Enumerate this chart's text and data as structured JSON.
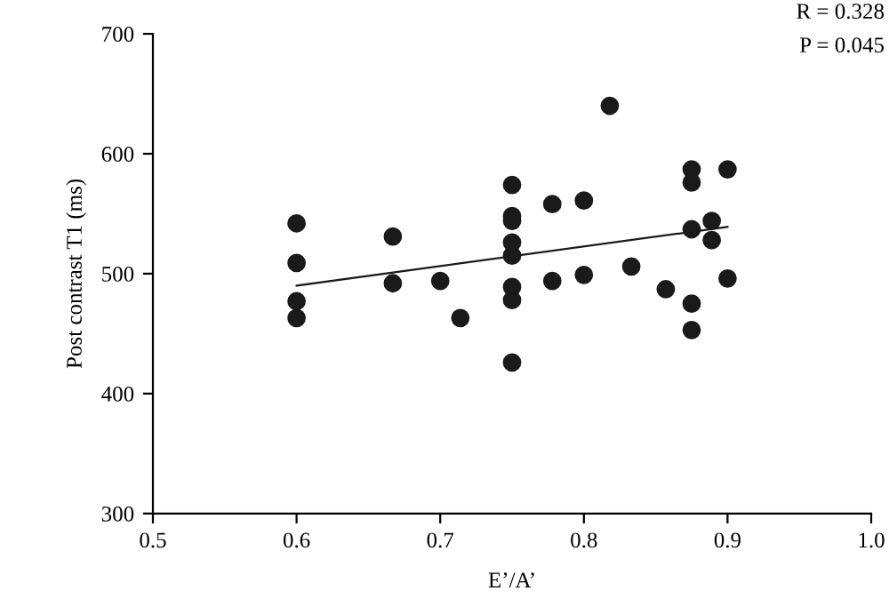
{
  "chart_data": {
    "type": "scatter",
    "xlabel": "E’/A’",
    "ylabel": "Post contrast T1 (ms)",
    "xlim": [
      0.5,
      1.0
    ],
    "xticks": [
      0.5,
      0.6,
      0.7,
      0.8,
      0.9,
      {
        "value": 1.0,
        "label": "1.0"
      }
    ],
    "ylim": [
      300,
      700
    ],
    "yticks": [
      300,
      400,
      500,
      600,
      700
    ],
    "grid": false,
    "annotations": [
      "R = 0.328",
      "P = 0.045"
    ],
    "series": [
      {
        "color": "#1a1a1a",
        "marker": "circle",
        "x": [
          0.6,
          0.6,
          0.6,
          0.6,
          0.667,
          0.667,
          0.7,
          0.714,
          0.75,
          0.75,
          0.75,
          0.75,
          0.75,
          0.75,
          0.75,
          0.75,
          0.778,
          0.778,
          0.8,
          0.8,
          0.818,
          0.833,
          0.857,
          0.875,
          0.875,
          0.875,
          0.875,
          0.875,
          0.889,
          0.889,
          0.9,
          0.9
        ],
        "values": [
          542,
          509,
          477,
          463,
          531,
          492,
          494,
          463,
          574,
          548,
          544,
          526,
          515,
          489,
          478,
          426,
          558,
          494,
          561,
          499,
          640,
          506,
          487,
          587,
          576,
          537,
          475,
          453,
          544,
          528,
          587,
          496
        ]
      },
      {
        "type": "line",
        "color": "#1a1a1a",
        "x": [
          0.6,
          0.9
        ],
        "values": [
          490,
          539
        ]
      }
    ]
  }
}
